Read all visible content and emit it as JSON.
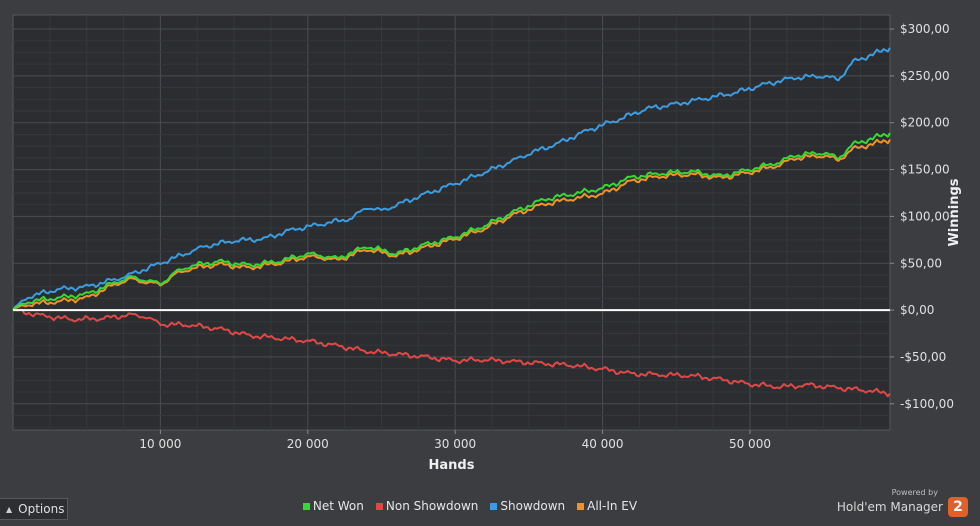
{
  "chart_data": {
    "type": "line",
    "xlabel": "Hands",
    "ylabel": "Winnings",
    "xlim": [
      0,
      59500
    ],
    "ylim": [
      -128,
      315
    ],
    "x_ticks": [
      10000,
      20000,
      30000,
      40000,
      50000
    ],
    "x_tick_labels": [
      "10 000",
      "20 000",
      "30 000",
      "40 000",
      "50 000"
    ],
    "y_ticks": [
      300,
      250,
      200,
      150,
      100,
      50,
      0,
      -50,
      -100
    ],
    "y_tick_labels": [
      "$300,00",
      "$250,00",
      "$200,00",
      "$150,00",
      "$100,00",
      "$50,00",
      "$0,00",
      "-$50,00",
      "-$100,00"
    ],
    "grid": true,
    "legend_position": "bottom",
    "series": [
      {
        "name": "Showdown",
        "color": "#3d9be0",
        "points": [
          [
            0,
            0
          ],
          [
            1000,
            14
          ],
          [
            3000,
            22
          ],
          [
            5000,
            25
          ],
          [
            7000,
            33
          ],
          [
            8000,
            38
          ],
          [
            10000,
            50
          ],
          [
            12000,
            62
          ],
          [
            13000,
            68
          ],
          [
            15000,
            74
          ],
          [
            17000,
            76
          ],
          [
            19000,
            86
          ],
          [
            21000,
            92
          ],
          [
            23000,
            98
          ],
          [
            24000,
            110
          ],
          [
            25000,
            106
          ],
          [
            26000,
            112
          ],
          [
            28000,
            124
          ],
          [
            30000,
            135
          ],
          [
            32000,
            147
          ],
          [
            34000,
            160
          ],
          [
            35000,
            167
          ],
          [
            37000,
            178
          ],
          [
            39000,
            192
          ],
          [
            41000,
            203
          ],
          [
            43000,
            215
          ],
          [
            45000,
            220
          ],
          [
            47000,
            226
          ],
          [
            49000,
            232
          ],
          [
            51000,
            241
          ],
          [
            53000,
            248
          ],
          [
            55000,
            250
          ],
          [
            56000,
            246
          ],
          [
            57000,
            265
          ],
          [
            59500,
            280
          ]
        ]
      },
      {
        "name": "Net Won",
        "color": "#36d836",
        "points": [
          [
            0,
            0
          ],
          [
            1000,
            9
          ],
          [
            3000,
            13
          ],
          [
            5000,
            17
          ],
          [
            7000,
            30
          ],
          [
            8000,
            35
          ],
          [
            9000,
            32
          ],
          [
            10000,
            28
          ],
          [
            11000,
            40
          ],
          [
            12000,
            47
          ],
          [
            14000,
            52
          ],
          [
            16000,
            48
          ],
          [
            18000,
            52
          ],
          [
            20000,
            60
          ],
          [
            21000,
            58
          ],
          [
            22000,
            55
          ],
          [
            24000,
            68
          ],
          [
            26000,
            60
          ],
          [
            28000,
            70
          ],
          [
            30000,
            78
          ],
          [
            32000,
            90
          ],
          [
            34000,
            105
          ],
          [
            36000,
            118
          ],
          [
            38000,
            124
          ],
          [
            40000,
            130
          ],
          [
            42000,
            142
          ],
          [
            44000,
            146
          ],
          [
            46000,
            148
          ],
          [
            48000,
            143
          ],
          [
            50000,
            150
          ],
          [
            52000,
            158
          ],
          [
            53000,
            165
          ],
          [
            55000,
            168
          ],
          [
            56000,
            162
          ],
          [
            57000,
            177
          ],
          [
            59500,
            189
          ]
        ]
      },
      {
        "name": "All-In EV",
        "color": "#f0922a",
        "points": [
          [
            0,
            0
          ],
          [
            1000,
            6
          ],
          [
            3000,
            9
          ],
          [
            5000,
            13
          ],
          [
            7000,
            28
          ],
          [
            8000,
            33
          ],
          [
            9000,
            30
          ],
          [
            10000,
            27
          ],
          [
            11000,
            38
          ],
          [
            12000,
            44
          ],
          [
            14000,
            49
          ],
          [
            16000,
            45
          ],
          [
            18000,
            50
          ],
          [
            20000,
            57
          ],
          [
            21000,
            56
          ],
          [
            22000,
            53
          ],
          [
            24000,
            65
          ],
          [
            26000,
            58
          ],
          [
            28000,
            67
          ],
          [
            30000,
            76
          ],
          [
            32000,
            87
          ],
          [
            34000,
            102
          ],
          [
            36000,
            113
          ],
          [
            38000,
            119
          ],
          [
            40000,
            124
          ],
          [
            42000,
            138
          ],
          [
            44000,
            143
          ],
          [
            46000,
            145
          ],
          [
            48000,
            141
          ],
          [
            50000,
            147
          ],
          [
            52000,
            155
          ],
          [
            53000,
            162
          ],
          [
            55000,
            165
          ],
          [
            56000,
            160
          ],
          [
            57000,
            172
          ],
          [
            59500,
            182
          ]
        ]
      },
      {
        "name": "Non Showdown",
        "color": "#e04848",
        "points": [
          [
            0,
            0
          ],
          [
            2000,
            -6
          ],
          [
            4000,
            -10
          ],
          [
            6000,
            -9
          ],
          [
            8000,
            -5
          ],
          [
            9000,
            -7
          ],
          [
            10000,
            -15
          ],
          [
            12000,
            -16
          ],
          [
            14000,
            -20
          ],
          [
            16000,
            -27
          ],
          [
            18000,
            -30
          ],
          [
            20000,
            -33
          ],
          [
            22000,
            -38
          ],
          [
            24000,
            -44
          ],
          [
            26000,
            -47
          ],
          [
            28000,
            -50
          ],
          [
            30000,
            -54
          ],
          [
            32000,
            -53
          ],
          [
            34000,
            -55
          ],
          [
            36000,
            -57
          ],
          [
            38000,
            -59
          ],
          [
            40000,
            -63
          ],
          [
            42000,
            -68
          ],
          [
            44000,
            -69
          ],
          [
            46000,
            -70
          ],
          [
            48000,
            -74
          ],
          [
            50000,
            -79
          ],
          [
            52000,
            -82
          ],
          [
            54000,
            -80
          ],
          [
            56000,
            -83
          ],
          [
            58000,
            -86
          ],
          [
            59500,
            -89
          ]
        ]
      }
    ]
  },
  "legend": [
    {
      "label": "Net Won",
      "color": "#36d836"
    },
    {
      "label": "Non Showdown",
      "color": "#e04848"
    },
    {
      "label": "Showdown",
      "color": "#3d9be0"
    },
    {
      "label": "All-In EV",
      "color": "#f0922a"
    }
  ],
  "options_label": "Options",
  "brand": {
    "powered": "Powered by",
    "name": "Hold'em Manager",
    "logo_text": "2"
  }
}
